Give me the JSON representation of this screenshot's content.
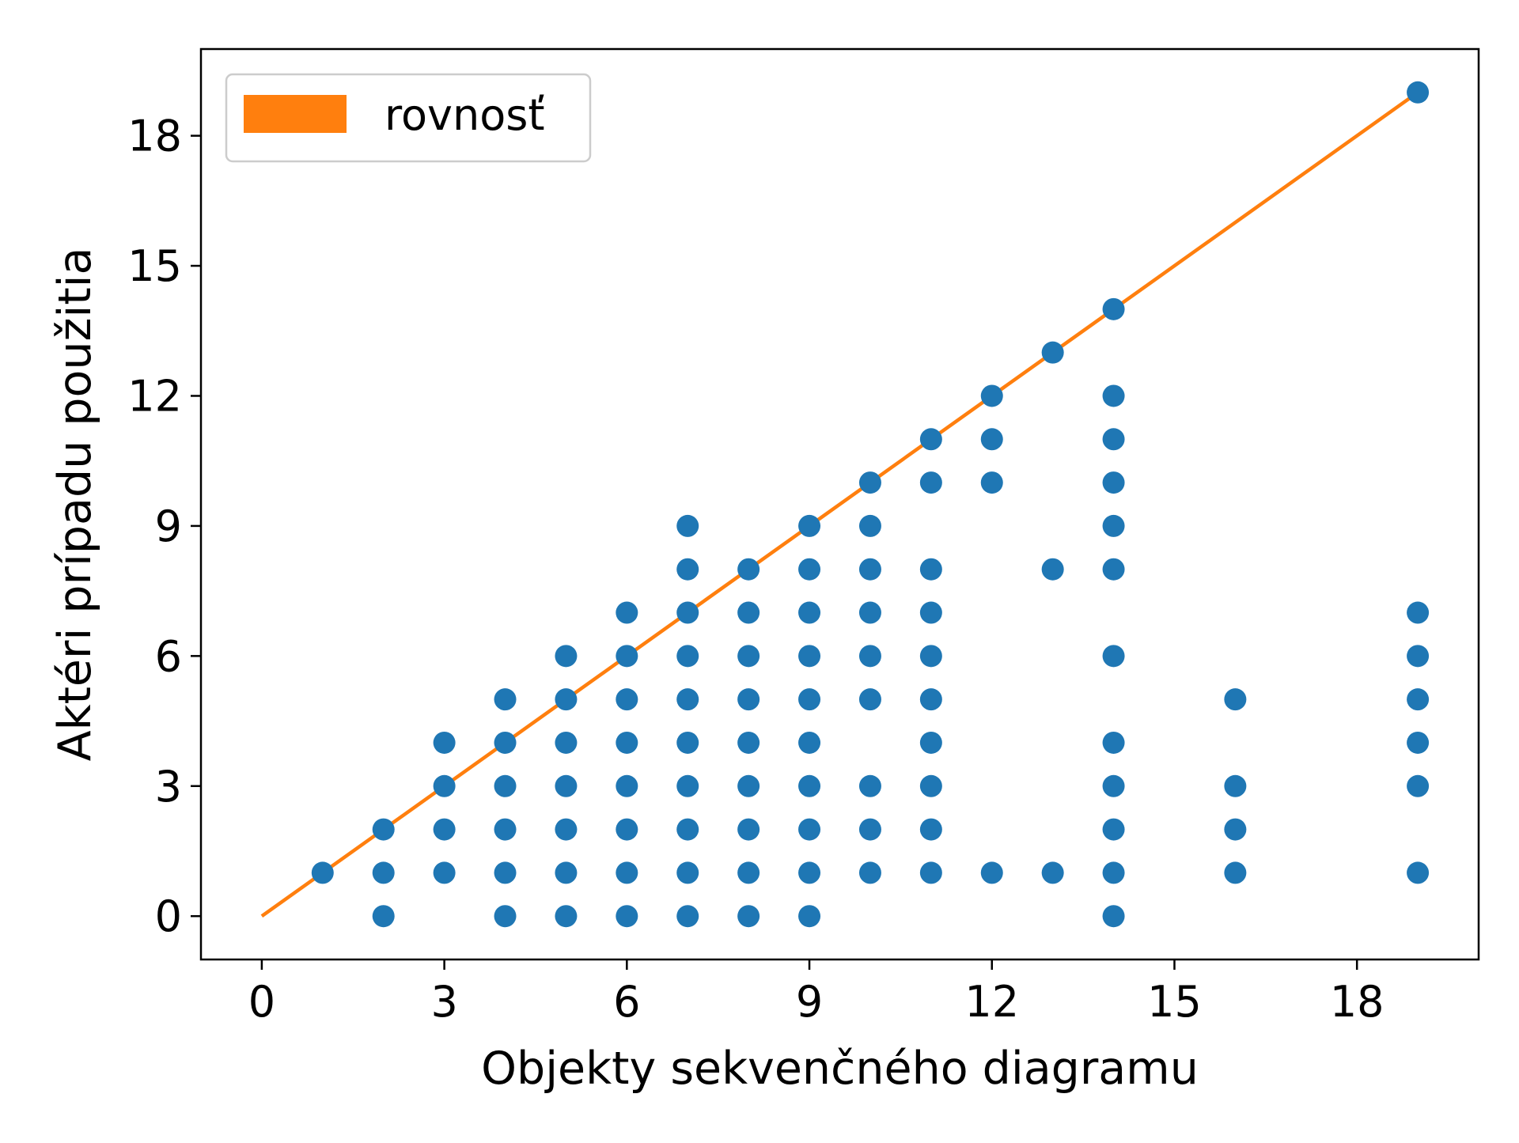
{
  "chart_data": {
    "type": "scatter",
    "xlabel": "Objekty sekvenčného diagramu",
    "ylabel": "Aktéri prípadu použitia",
    "xlim": [
      -1,
      20
    ],
    "ylim": [
      -1,
      20
    ],
    "xticks": [
      0,
      3,
      6,
      9,
      12,
      15,
      18
    ],
    "yticks": [
      0,
      3,
      6,
      9,
      12,
      15,
      18
    ],
    "grid": false,
    "legend_position": "top-left",
    "series": [
      {
        "type": "scatter",
        "color": "#1f77b4",
        "points": [
          [
            1,
            1
          ],
          [
            2,
            0
          ],
          [
            2,
            1
          ],
          [
            2,
            2
          ],
          [
            3,
            1
          ],
          [
            3,
            2
          ],
          [
            3,
            3
          ],
          [
            3,
            4
          ],
          [
            4,
            0
          ],
          [
            4,
            1
          ],
          [
            4,
            2
          ],
          [
            4,
            3
          ],
          [
            4,
            4
          ],
          [
            4,
            5
          ],
          [
            5,
            0
          ],
          [
            5,
            1
          ],
          [
            5,
            2
          ],
          [
            5,
            3
          ],
          [
            5,
            4
          ],
          [
            5,
            5
          ],
          [
            5,
            6
          ],
          [
            6,
            0
          ],
          [
            6,
            1
          ],
          [
            6,
            2
          ],
          [
            6,
            3
          ],
          [
            6,
            4
          ],
          [
            6,
            5
          ],
          [
            6,
            6
          ],
          [
            6,
            7
          ],
          [
            7,
            0
          ],
          [
            7,
            1
          ],
          [
            7,
            2
          ],
          [
            7,
            3
          ],
          [
            7,
            4
          ],
          [
            7,
            5
          ],
          [
            7,
            6
          ],
          [
            7,
            7
          ],
          [
            7,
            8
          ],
          [
            7,
            9
          ],
          [
            8,
            0
          ],
          [
            8,
            1
          ],
          [
            8,
            2
          ],
          [
            8,
            3
          ],
          [
            8,
            4
          ],
          [
            8,
            5
          ],
          [
            8,
            6
          ],
          [
            8,
            7
          ],
          [
            8,
            8
          ],
          [
            9,
            0
          ],
          [
            9,
            1
          ],
          [
            9,
            2
          ],
          [
            9,
            3
          ],
          [
            9,
            4
          ],
          [
            9,
            5
          ],
          [
            9,
            6
          ],
          [
            9,
            7
          ],
          [
            9,
            8
          ],
          [
            9,
            9
          ],
          [
            10,
            1
          ],
          [
            10,
            2
          ],
          [
            10,
            3
          ],
          [
            10,
            5
          ],
          [
            10,
            6
          ],
          [
            10,
            7
          ],
          [
            10,
            8
          ],
          [
            10,
            9
          ],
          [
            10,
            10
          ],
          [
            11,
            1
          ],
          [
            11,
            2
          ],
          [
            11,
            3
          ],
          [
            11,
            4
          ],
          [
            11,
            5
          ],
          [
            11,
            6
          ],
          [
            11,
            7
          ],
          [
            11,
            8
          ],
          [
            11,
            10
          ],
          [
            11,
            11
          ],
          [
            12,
            1
          ],
          [
            12,
            10
          ],
          [
            12,
            11
          ],
          [
            12,
            12
          ],
          [
            13,
            1
          ],
          [
            13,
            8
          ],
          [
            13,
            13
          ],
          [
            14,
            0
          ],
          [
            14,
            1
          ],
          [
            14,
            2
          ],
          [
            14,
            3
          ],
          [
            14,
            4
          ],
          [
            14,
            6
          ],
          [
            14,
            8
          ],
          [
            14,
            9
          ],
          [
            14,
            10
          ],
          [
            14,
            11
          ],
          [
            14,
            12
          ],
          [
            14,
            14
          ],
          [
            16,
            1
          ],
          [
            16,
            2
          ],
          [
            16,
            3
          ],
          [
            16,
            5
          ],
          [
            19,
            1
          ],
          [
            19,
            3
          ],
          [
            19,
            4
          ],
          [
            19,
            5
          ],
          [
            19,
            6
          ],
          [
            19,
            7
          ],
          [
            19,
            19
          ]
        ]
      },
      {
        "type": "line",
        "name": "rovnosť",
        "color": "#ff7f0e",
        "x": [
          0,
          19
        ],
        "y": [
          0,
          19
        ]
      }
    ]
  }
}
